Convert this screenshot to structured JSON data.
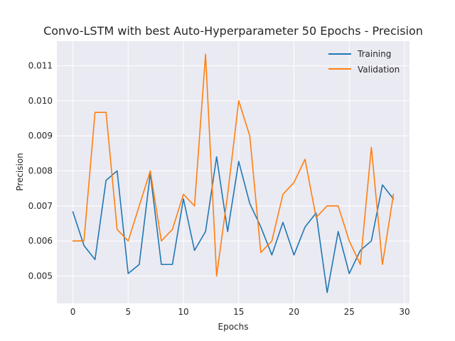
{
  "chart_data": {
    "type": "line",
    "title": "Convo-LSTM with best Auto-Hyperparameter 50 Epochs - Precision",
    "xlabel": "Epochs",
    "ylabel": "Precision",
    "xlim": [
      -1.45,
      30.45
    ],
    "ylim": [
      0.00422,
      0.0117
    ],
    "xticks": [
      0,
      5,
      10,
      15,
      20,
      25,
      30
    ],
    "yticks": [
      0.005,
      0.006,
      0.007,
      0.008,
      0.009,
      0.01,
      0.011
    ],
    "grid": true,
    "legend_position": "top-right",
    "x": [
      0,
      1,
      2,
      3,
      4,
      5,
      6,
      7,
      8,
      9,
      10,
      11,
      12,
      13,
      14,
      15,
      16,
      17,
      18,
      19,
      20,
      21,
      22,
      23,
      24,
      25,
      26,
      27,
      28,
      29
    ],
    "series": [
      {
        "name": "Training",
        "color": "#1f77b4",
        "values": [
          0.00683,
          0.00587,
          0.00547,
          0.00773,
          0.008,
          0.00507,
          0.00533,
          0.00793,
          0.00533,
          0.00533,
          0.0072,
          0.00573,
          0.00627,
          0.0084,
          0.00627,
          0.00827,
          0.00707,
          0.0064,
          0.0056,
          0.00653,
          0.0056,
          0.0064,
          0.0068,
          0.00453,
          0.00627,
          0.00507,
          0.00573,
          0.006,
          0.0076,
          0.0072
        ]
      },
      {
        "name": "Validation",
        "color": "#ff7f0e",
        "values": [
          0.006,
          0.006,
          0.00967,
          0.00967,
          0.00633,
          0.006,
          0.007,
          0.008,
          0.006,
          0.00633,
          0.00733,
          0.007,
          0.01133,
          0.005,
          0.00733,
          0.01,
          0.009,
          0.00567,
          0.006,
          0.00733,
          0.00767,
          0.00833,
          0.00667,
          0.007,
          0.007,
          0.006,
          0.00533,
          0.00867,
          0.00533,
          0.00733
        ]
      }
    ]
  }
}
